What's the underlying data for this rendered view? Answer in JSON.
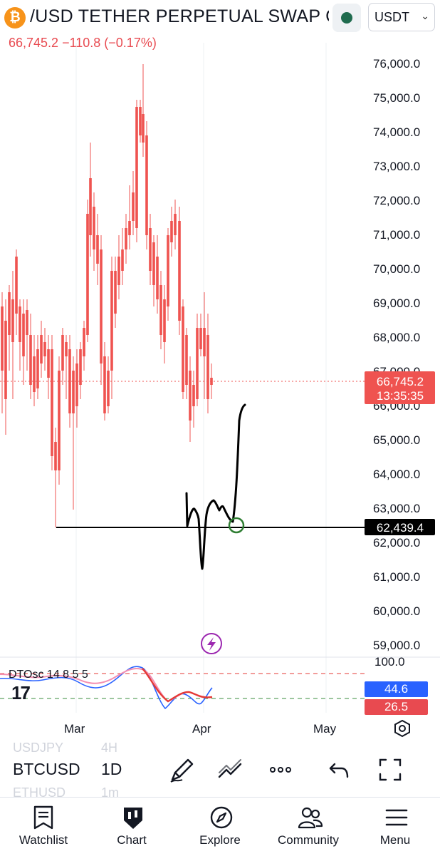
{
  "header": {
    "coin_symbol": "₿",
    "title": "/USD TETHER PERPETUAL SWAP C...",
    "currency": "USDT",
    "price_line": "66,745.2 −110.8 (−0.17%)"
  },
  "chart": {
    "price_axis": [
      "76,000.0",
      "75,000.0",
      "74,000.0",
      "73,000.0",
      "72,000.0",
      "71,000.0",
      "70,000.0",
      "69,000.0",
      "68,000.0",
      "67,000.0",
      "66,000.0",
      "65,000.0",
      "64,000.0",
      "63,000.0",
      "62,000.0",
      "61,000.0",
      "60,000.0",
      "59,000.0"
    ],
    "last_price_tag": "66,745.2",
    "countdown_tag": "13:35:35",
    "level_tag": "62,439.4",
    "time_axis": [
      "Mar",
      "Apr",
      "May"
    ]
  },
  "indicator": {
    "legend": "DTOsc 14 8 5 5",
    "top_level": "100.0",
    "value_blue": "44.6",
    "value_red": "26.5",
    "logo": "17"
  },
  "toolbar": {
    "symbol": "BTCUSD",
    "interval": "1D",
    "prev_symbol": "USDJPY",
    "prev_interval": "4H",
    "next_symbol": "ETHUSD",
    "next_interval": "1m"
  },
  "nav": {
    "watchlist": "Watchlist",
    "chart": "Chart",
    "explore": "Explore",
    "community": "Community",
    "menu": "Menu"
  },
  "colors": {
    "up": "#26a69a",
    "down": "#ef5350",
    "accent": "#2962ff"
  }
}
